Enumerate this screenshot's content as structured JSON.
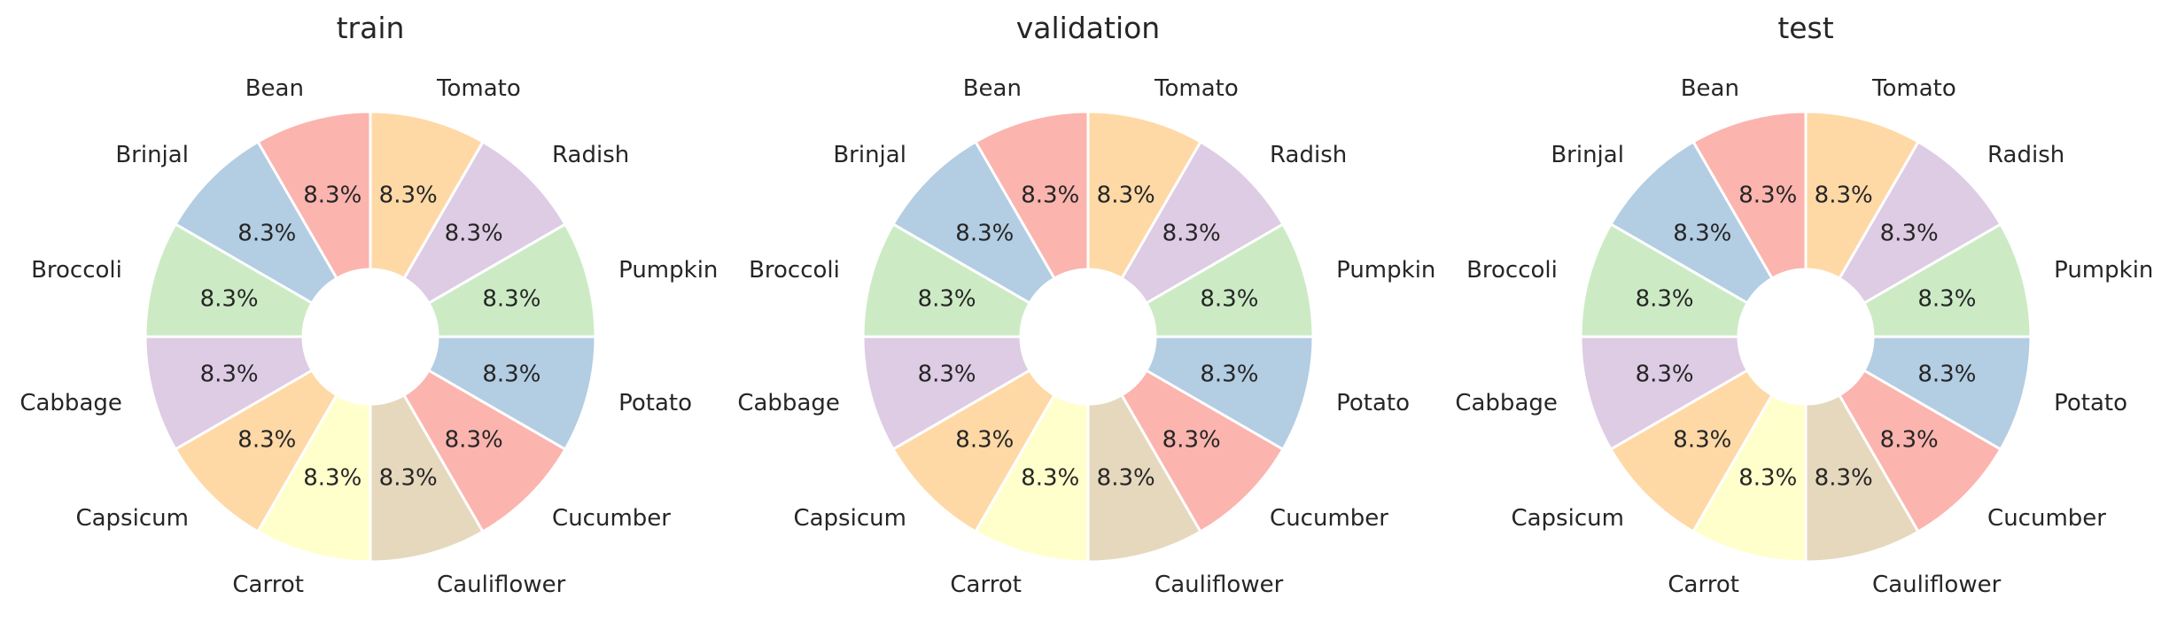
{
  "chart_data": [
    {
      "type": "pie",
      "title": "train",
      "categories": [
        "Bean",
        "Brinjal",
        "Broccoli",
        "Cabbage",
        "Capsicum",
        "Carrot",
        "Cauliflower",
        "Cucumber",
        "Potato",
        "Pumpkin",
        "Radish",
        "Tomato"
      ],
      "values": [
        1,
        1,
        1,
        1,
        1,
        1,
        1,
        1,
        1,
        1,
        1,
        1
      ],
      "percent_labels": [
        "8.3%",
        "8.3%",
        "8.3%",
        "8.3%",
        "8.3%",
        "8.3%",
        "8.3%",
        "8.3%",
        "8.3%",
        "8.3%",
        "8.3%",
        "8.3%"
      ],
      "donut": true
    },
    {
      "type": "pie",
      "title": "validation",
      "categories": [
        "Bean",
        "Brinjal",
        "Broccoli",
        "Cabbage",
        "Capsicum",
        "Carrot",
        "Cauliflower",
        "Cucumber",
        "Potato",
        "Pumpkin",
        "Radish",
        "Tomato"
      ],
      "values": [
        1,
        1,
        1,
        1,
        1,
        1,
        1,
        1,
        1,
        1,
        1,
        1
      ],
      "percent_labels": [
        "8.3%",
        "8.3%",
        "8.3%",
        "8.3%",
        "8.3%",
        "8.3%",
        "8.3%",
        "8.3%",
        "8.3%",
        "8.3%",
        "8.3%",
        "8.3%"
      ],
      "donut": true
    },
    {
      "type": "pie",
      "title": "test",
      "categories": [
        "Bean",
        "Brinjal",
        "Broccoli",
        "Cabbage",
        "Capsicum",
        "Carrot",
        "Cauliflower",
        "Cucumber",
        "Potato",
        "Pumpkin",
        "Radish",
        "Tomato"
      ],
      "values": [
        1,
        1,
        1,
        1,
        1,
        1,
        1,
        1,
        1,
        1,
        1,
        1
      ],
      "percent_labels": [
        "8.3%",
        "8.3%",
        "8.3%",
        "8.3%",
        "8.3%",
        "8.3%",
        "8.3%",
        "8.3%",
        "8.3%",
        "8.3%",
        "8.3%",
        "8.3%"
      ],
      "donut": true
    }
  ],
  "colors": [
    "#fbb4ae",
    "#b3cde3",
    "#ccebc5",
    "#decbe4",
    "#fed9a6",
    "#ffffcc",
    "#e5d8bd",
    "#fbb4ae",
    "#b3cde3",
    "#ccebc5",
    "#decbe4",
    "#fed9a6"
  ]
}
